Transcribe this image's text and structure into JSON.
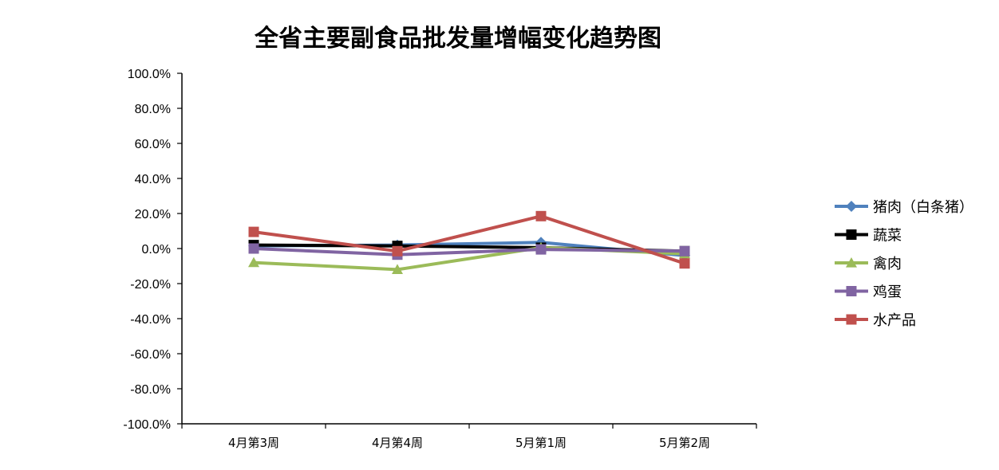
{
  "chart_data": {
    "type": "line",
    "title": "全省主要副食品批发量增幅变化趋势图",
    "categories": [
      "4月第3周",
      "4月第4周",
      "5月第1周",
      "5月第2周"
    ],
    "ylim": [
      -100,
      100
    ],
    "yticks": [
      "100.0%",
      "80.0%",
      "60.0%",
      "40.0%",
      "20.0%",
      "0.0%",
      "-20.0%",
      "-40.0%",
      "-60.0%",
      "-80.0%",
      "-100.0%"
    ],
    "ytick_values": [
      100,
      80,
      60,
      40,
      20,
      0,
      -20,
      -40,
      -60,
      -80,
      -100
    ],
    "legend_position": "right",
    "grid": false,
    "series": [
      {
        "name": "猪肉（白条猪）",
        "values": [
          1.5,
          2.0,
          3.5,
          -4.0
        ],
        "color": "#4F81BD",
        "marker": "diamond"
      },
      {
        "name": "蔬菜",
        "values": [
          2.0,
          1.5,
          0.5,
          -1.5
        ],
        "color": "#000000",
        "marker": "square"
      },
      {
        "name": "禽肉",
        "values": [
          -8.0,
          -12.0,
          0.5,
          -3.0
        ],
        "color": "#9BBB59",
        "marker": "triangle"
      },
      {
        "name": "鸡蛋",
        "values": [
          0.0,
          -3.5,
          -0.5,
          -1.5
        ],
        "color": "#8064A2",
        "marker": "square"
      },
      {
        "name": "水产品",
        "values": [
          9.5,
          -1.5,
          18.5,
          -8.5
        ],
        "color": "#C0504D",
        "marker": "square"
      }
    ]
  }
}
